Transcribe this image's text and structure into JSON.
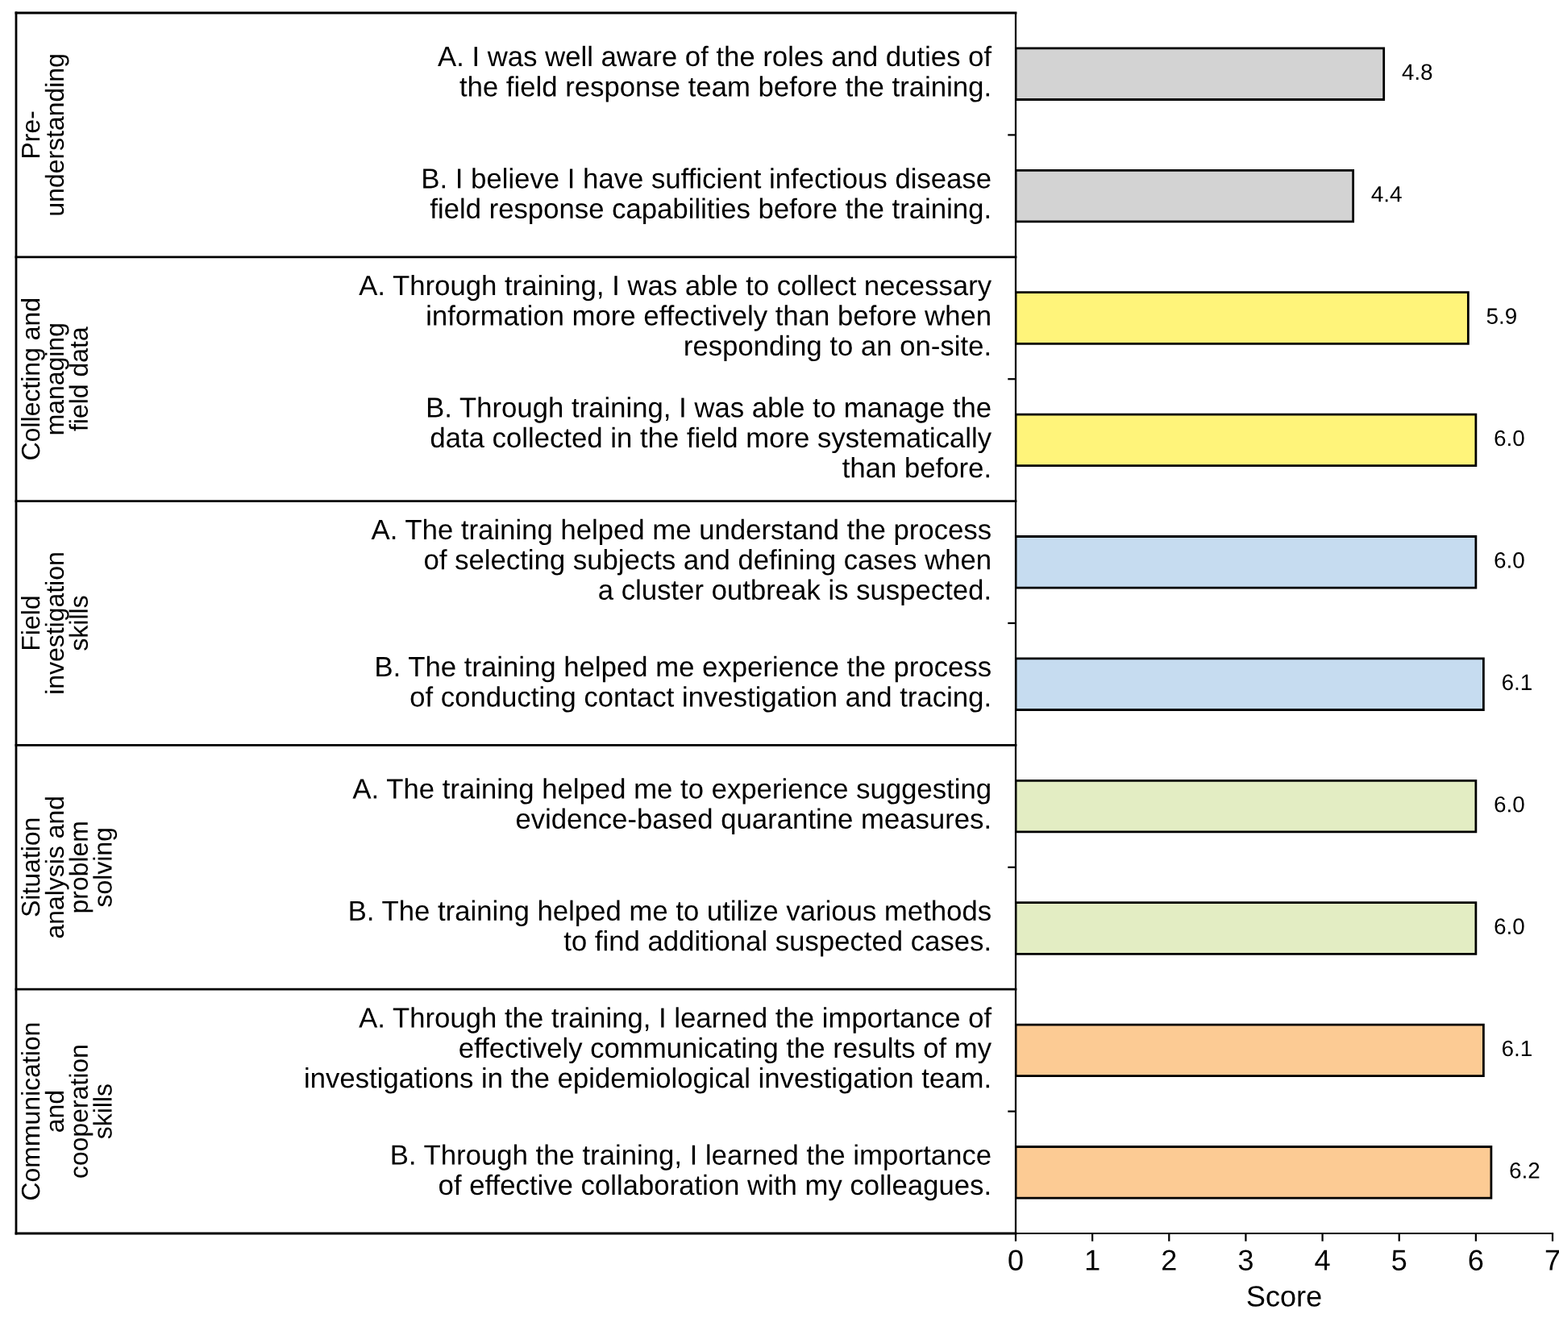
{
  "chart_data": {
    "type": "bar",
    "orientation": "horizontal",
    "xlabel": "Score",
    "categories": [
      "A. I was well aware of the roles and duties of\nthe field response team before the training.",
      "B. I believe I have sufficient infectious disease\nfield response capabilities before the training.",
      "A. Through training, I was able to collect necessary\ninformation more effectively than before when\nresponding to an on-site.",
      "B. Through training, I was able to manage the\ndata collected in the field more systematically\nthan before.",
      "A. The training helped me understand the process\nof selecting subjects and defining cases when\na cluster outbreak is suspected.",
      "B. The training helped me experience the process\nof conducting contact investigation and tracing.",
      "A. The training helped me to experience suggesting\nevidence-based quarantine measures.",
      "B. The training helped me to utilize various methods\nto find additional suspected cases.",
      "A. Through the training, I learned the importance of\neffectively communicating the results of my\ninvestigations in the epidemiological investigation team.",
      "B. Through the training, I learned the importance\nof effective collaboration with my colleagues."
    ],
    "values": [
      4.8,
      4.4,
      5.9,
      6.0,
      6.0,
      6.1,
      6.0,
      6.0,
      6.1,
      6.2
    ],
    "colors": [
      "#d3d3d3",
      "#d3d3d3",
      "#fff47a",
      "#fff47a",
      "#c6dcf0",
      "#c6dcf0",
      "#e3edc3",
      "#e3edc3",
      "#fccb94",
      "#fccb94"
    ],
    "value_labels": [
      "4.8",
      "4.4",
      "5.9",
      "6.0",
      "6.0",
      "6.1",
      "6.0",
      "6.0",
      "6.1",
      "6.2"
    ],
    "xlim": [
      0,
      7
    ],
    "xticks": [
      0,
      1,
      2,
      3,
      4,
      5,
      6,
      7
    ],
    "grid": false,
    "annotations": [
      "Pre-\nunderstanding",
      "Collecting and\nmanaging\nfield data",
      "Field\ninvestigation\nskills",
      "Situation\nanalysis and\nproblem\nsolving",
      "Communication\nand\ncooperation\nskills"
    ]
  }
}
